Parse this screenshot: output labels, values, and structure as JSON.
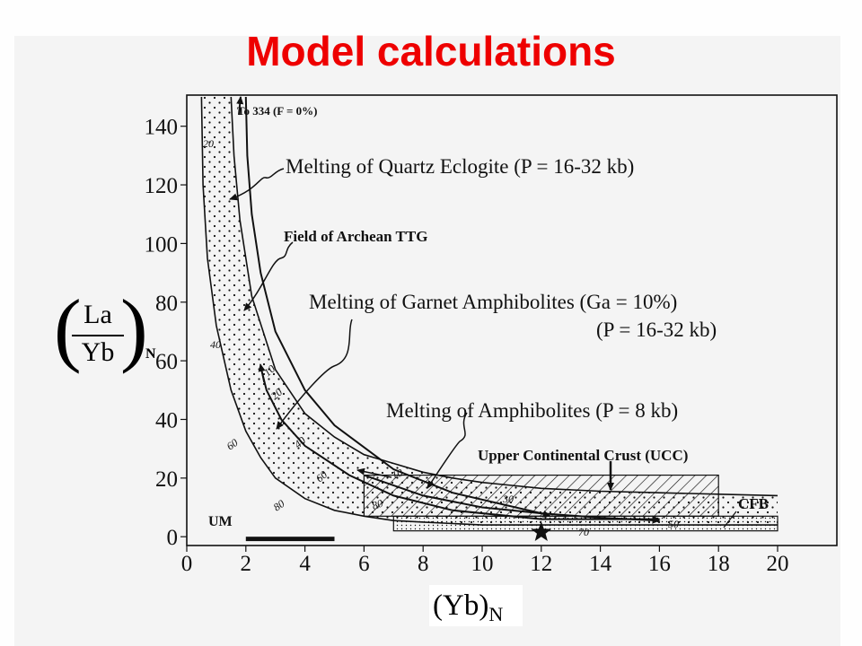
{
  "slide_title": "Model calculations",
  "colors": {
    "title": "#ee0000",
    "ink": "#111111"
  },
  "chart_data": {
    "type": "line",
    "title": "Model calculations",
    "xlabel": {
      "main": "(Yb)",
      "sub": "N"
    },
    "ylabel": {
      "numerator": "La",
      "denominator": "Yb",
      "sub": "N"
    },
    "xlim": [
      0,
      20
    ],
    "ylim": [
      -3,
      150
    ],
    "xticks": [
      0,
      2,
      4,
      6,
      8,
      10,
      12,
      14,
      16,
      18,
      20
    ],
    "yticks": [
      0,
      20,
      40,
      60,
      80,
      100,
      120,
      140
    ],
    "grid": false,
    "series": [
      {
        "name": "Melting of Quartz Eclogite (P = 16-32 kb)",
        "x": [
          2.0,
          2.05,
          2.2,
          2.5,
          3.0,
          4.0,
          5.0,
          7.0,
          9.0,
          12.0,
          12.3
        ],
        "y": [
          150,
          130,
          110,
          90,
          70,
          50,
          38,
          23,
          15,
          8,
          7
        ]
      },
      {
        "name": "Melting of Garnet Amphibolites (Ga = 10%) (P = 16-32 kb)",
        "x": [
          2.5,
          2.7,
          3.2,
          4.0,
          5.5,
          7.0,
          9.0,
          12.0,
          14.0,
          16.0
        ],
        "y": [
          58,
          50,
          40,
          31,
          21,
          14,
          9,
          6,
          6,
          6
        ]
      },
      {
        "name": "Melting of Amphibolites (P = 8 kb)",
        "x": [
          6.0,
          8.0,
          10.0,
          12.0,
          14.0,
          16.0
        ],
        "y": [
          21,
          14,
          10,
          8,
          6.5,
          5.5
        ]
      }
    ],
    "field_of_archean_ttg": {
      "label": "Field of Archean TTG",
      "outer_left": {
        "x": [
          0.5,
          0.55,
          0.7,
          1.0,
          1.5,
          2.0,
          2.5,
          3.0,
          4.0,
          5.0,
          6.0,
          7.0,
          8.0,
          9.0,
          10.0,
          12.0,
          14.0,
          16.0,
          18.0,
          20.0
        ],
        "y": [
          150,
          120,
          95,
          72,
          50,
          36,
          27,
          20,
          13,
          9,
          7,
          5.5,
          5,
          4.5,
          4,
          4,
          4,
          4,
          4,
          4
        ]
      },
      "outer_right": {
        "x": [
          1.5,
          1.6,
          1.8,
          2.2,
          3.0,
          4.0,
          5.0,
          6.0,
          7.0,
          8.0,
          9.0,
          10.0,
          11.0,
          12.0,
          14.0,
          16.0,
          18.0,
          20.0
        ],
        "y": [
          150,
          130,
          108,
          82,
          57,
          42,
          34,
          28,
          25,
          22,
          20,
          18.5,
          17.5,
          16.5,
          15.5,
          15,
          14.5,
          14
        ]
      }
    },
    "fields": [
      {
        "label": "Upper Continental Crust (UCC)",
        "x": [
          6,
          18
        ],
        "y": [
          7,
          21
        ],
        "pattern": "hatched"
      },
      {
        "label": "CFB",
        "x": [
          7,
          20
        ],
        "y": [
          2,
          7
        ],
        "pattern": "dotted"
      },
      {
        "label": "UM",
        "x": [
          2,
          5
        ],
        "y": [
          -1.5,
          0
        ],
        "pattern": "solid"
      }
    ],
    "curve_labels": [
      {
        "text": "Melting of Quartz Eclogite (P = 16-32 kb)",
        "bold": false
      },
      {
        "text": "Field of Archean TTG",
        "bold": true
      },
      {
        "text": "Melting of Garnet Amphibolites (Ga = 10%)",
        "bold": false
      },
      {
        "text": "(P = 16-32 kb)",
        "bold": false
      },
      {
        "text": "Melting of Amphibolites (P = 8 kb)",
        "bold": false
      },
      {
        "text": "Upper Continental Crust (UCC)",
        "bold": true
      },
      {
        "text": "CFB",
        "bold": true
      },
      {
        "text": "UM",
        "bold": true
      }
    ],
    "annotations": [
      {
        "text": "To 334 (F = 0%)"
      },
      {
        "text": "20"
      },
      {
        "text": "40"
      },
      {
        "text": "60"
      },
      {
        "text": "80"
      },
      {
        "text": "10"
      },
      {
        "text": "20"
      },
      {
        "text": "40"
      },
      {
        "text": "60"
      },
      {
        "text": "80"
      },
      {
        "text": "10"
      },
      {
        "text": "30"
      },
      {
        "text": "50"
      },
      {
        "text": "70"
      }
    ],
    "marker": {
      "symbol": "star",
      "x": 12.0,
      "y": 1.5
    }
  }
}
